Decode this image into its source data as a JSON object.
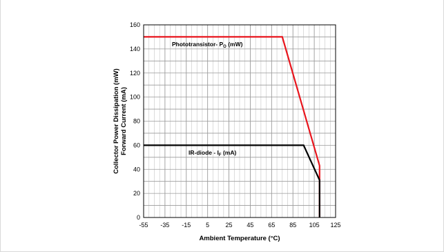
{
  "chart_data": {
    "type": "line",
    "xlabel": "Ambient Temperature (°C)",
    "ylabel_lines": [
      "Collector Power Dissipation (mW)",
      "Forward Current (mA)"
    ],
    "xlim": [
      -55,
      125
    ],
    "ylim": [
      0,
      160
    ],
    "x_ticks": [
      "-55",
      "-35",
      "-15",
      "5",
      "25",
      "45",
      "65",
      "85",
      "105",
      "125"
    ],
    "y_ticks": [
      "0",
      "20",
      "40",
      "60",
      "80",
      "100",
      "120",
      "140",
      "160"
    ],
    "grid": true,
    "series": [
      {
        "name": "Phototransistor- P",
        "name_subscript": "O",
        "name_suffix": " (mW)",
        "color": "#e8141c",
        "points": [
          [
            -55,
            150
          ],
          [
            75,
            150
          ],
          [
            110,
            43
          ],
          [
            110,
            0
          ]
        ]
      },
      {
        "name": "IR-diode - I",
        "name_subscript": "F",
        "name_suffix": " (mA)",
        "color": "#000000",
        "points": [
          [
            -55,
            60
          ],
          [
            95,
            60
          ],
          [
            110,
            31
          ],
          [
            110,
            0
          ]
        ]
      }
    ]
  }
}
